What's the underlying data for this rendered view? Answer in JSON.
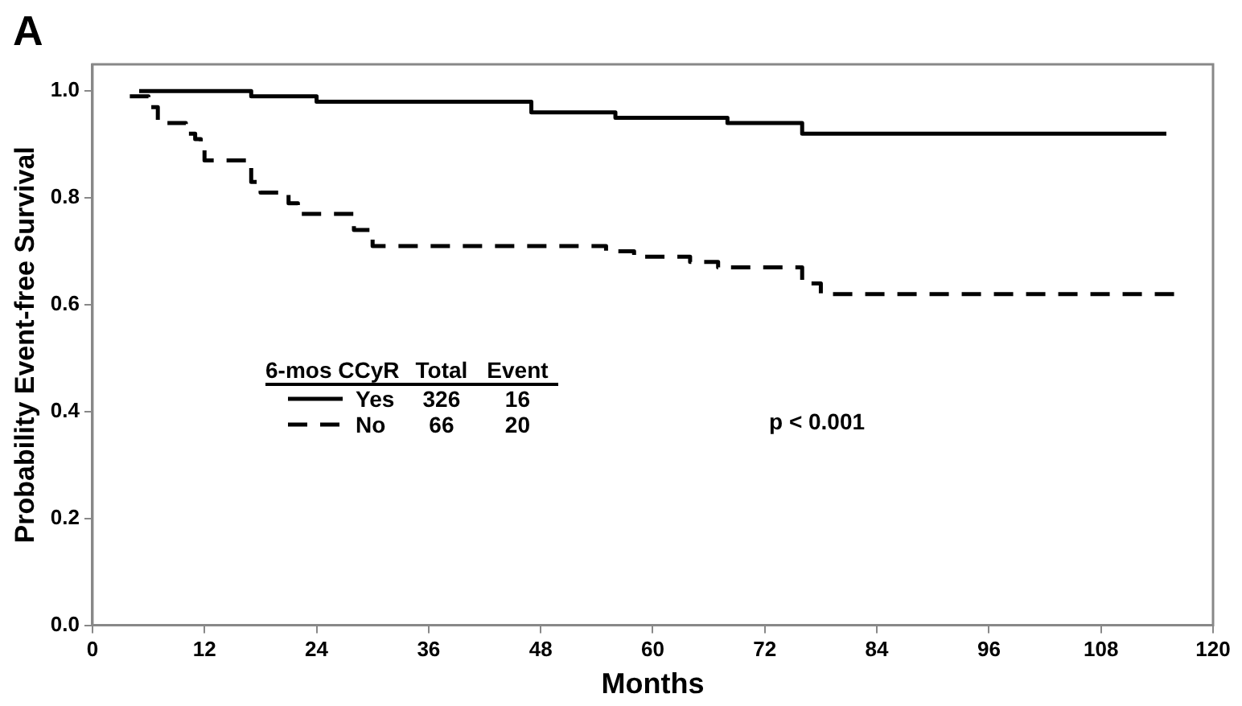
{
  "chart_data": {
    "type": "step",
    "title": "A",
    "xlabel": "Months",
    "ylabel": "Probability Event-free Survival",
    "legend_title": "6-mos CCyR",
    "legend": "left",
    "grid": false,
    "xlim": [
      0,
      120
    ],
    "xticks": [
      0,
      12,
      24,
      36,
      48,
      60,
      72,
      84,
      96,
      108,
      120
    ],
    "ylim": [
      0,
      1.05
    ],
    "yticks": [
      {
        "value": 0,
        "label": "0.0"
      },
      {
        "value": 0.2,
        "label": "0.2"
      },
      {
        "value": 0.4,
        "label": "0.4"
      },
      {
        "value": 0.6,
        "label": "0.6"
      },
      {
        "value": 0.8,
        "label": "0.8"
      },
      {
        "value": 1,
        "label": "1.0"
      }
    ],
    "series": [
      {
        "name": "Yes",
        "color": "#000000",
        "line_style": "solid",
        "x": [
          5,
          17,
          24,
          47,
          56,
          68,
          76,
          115
        ],
        "values": [
          1.0,
          0.99,
          0.98,
          0.96,
          0.95,
          0.94,
          0.92,
          0.92
        ]
      },
      {
        "name": "No",
        "color": "#000000",
        "line_style": "dashed",
        "x": [
          4,
          6,
          7,
          10,
          11,
          11.6,
          12,
          17,
          18,
          21,
          22,
          28,
          30,
          55,
          58,
          64,
          67,
          76,
          78,
          116
        ],
        "values": [
          0.99,
          0.97,
          0.94,
          0.92,
          0.91,
          0.89,
          0.87,
          0.83,
          0.81,
          0.79,
          0.77,
          0.74,
          0.71,
          0.7,
          0.69,
          0.68,
          0.67,
          0.64,
          0.62,
          0.62
        ]
      }
    ],
    "annotations": [
      "Total",
      "Event",
      "326",
      "16",
      "66",
      "20",
      "p < 0.001"
    ]
  }
}
